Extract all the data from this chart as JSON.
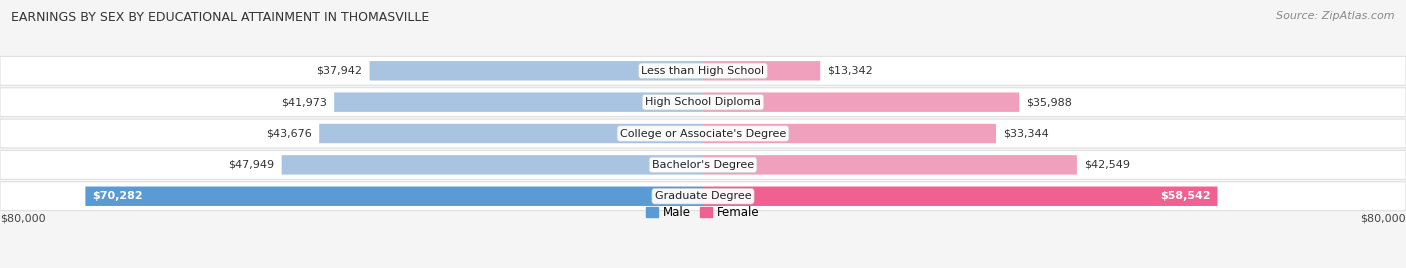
{
  "title": "EARNINGS BY SEX BY EDUCATIONAL ATTAINMENT IN THOMASVILLE",
  "source": "Source: ZipAtlas.com",
  "categories": [
    "Less than High School",
    "High School Diploma",
    "College or Associate's Degree",
    "Bachelor's Degree",
    "Graduate Degree"
  ],
  "male_values": [
    37942,
    41973,
    43676,
    47949,
    70282
  ],
  "female_values": [
    13342,
    35988,
    33344,
    42549,
    58542
  ],
  "male_color_normal": "#a8c4e0",
  "female_color_normal": "#f0a0bc",
  "male_color_last": "#5b9bd5",
  "female_color_last": "#f06090",
  "axis_max": 80000,
  "xlabel_left": "$80,000",
  "xlabel_right": "$80,000",
  "legend_male": "Male",
  "legend_female": "Female",
  "background_color": "#f5f5f5",
  "row_bg_color": "#ffffff",
  "row_outer_color": "#e0e0e0",
  "title_fontsize": 9,
  "source_fontsize": 8,
  "value_fontsize": 8,
  "cat_fontsize": 8
}
